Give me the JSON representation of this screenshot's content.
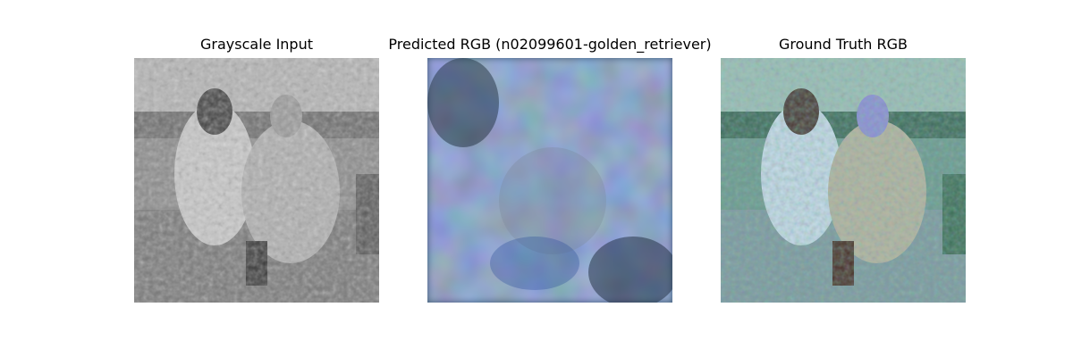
{
  "figure": {
    "panels": [
      {
        "title": "Grayscale Input",
        "image": "grayscale-photo"
      },
      {
        "title": "Predicted RGB (n02099601-golden_retriever)",
        "image": "predicted-blurry-blue-photo"
      },
      {
        "title": "Ground Truth RGB",
        "image": "ground-truth-color-photo"
      }
    ],
    "colors": {
      "background": "#ffffff",
      "gray_mid": "#8c8c8c",
      "pred_blue": "#3d5a78",
      "gt_teal": "#6d9a8f"
    }
  }
}
